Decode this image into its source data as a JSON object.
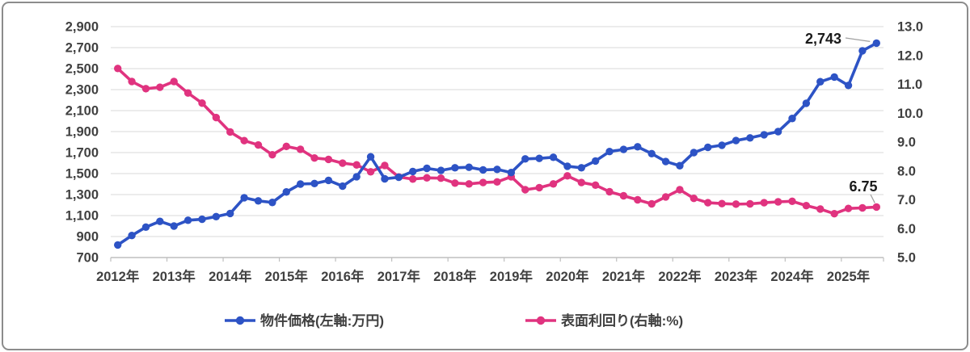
{
  "chart_data": {
    "type": "line",
    "title": "",
    "x_tick_labels": [
      "2012年",
      "2013年",
      "2014年",
      "2015年",
      "2016年",
      "2017年",
      "2018年",
      "2019年",
      "2020年",
      "2021年",
      "2022年",
      "2023年",
      "2024年",
      "2025年"
    ],
    "points_per_year": 4,
    "left_axis": {
      "min": 700,
      "max": 2900,
      "step": 200,
      "tick_labels": [
        "2,900",
        "2,700",
        "2,500",
        "2,300",
        "2,100",
        "1,900",
        "1,700",
        "1,500",
        "1,300",
        "1,100",
        "900",
        "700"
      ]
    },
    "right_axis": {
      "min": 5.0,
      "max": 13.0,
      "step": 1.0,
      "tick_labels": [
        "13.0",
        "12.0",
        "11.0",
        "10.0",
        "9.0",
        "8.0",
        "7.0",
        "6.0",
        "5.0"
      ]
    },
    "grid": true,
    "legend_position": "bottom",
    "series": [
      {
        "name": "表面利回り(右軸:%)",
        "axis": "right",
        "color": "#e0337f",
        "values": [
          11.55,
          11.1,
          10.85,
          10.9,
          11.1,
          10.7,
          10.35,
          9.85,
          9.35,
          9.05,
          8.9,
          8.56,
          8.85,
          8.75,
          8.45,
          8.4,
          8.27,
          8.21,
          7.97,
          8.19,
          7.79,
          7.72,
          7.76,
          7.75,
          7.58,
          7.55,
          7.6,
          7.62,
          7.8,
          7.35,
          7.42,
          7.55,
          7.83,
          7.6,
          7.51,
          7.28,
          7.14,
          7.0,
          6.86,
          7.1,
          7.35,
          7.05,
          6.9,
          6.87,
          6.85,
          6.86,
          6.9,
          6.93,
          6.95,
          6.8,
          6.68,
          6.52,
          6.7,
          6.72,
          6.75
        ]
      },
      {
        "name": "物件価格(左軸:万円)",
        "axis": "left",
        "color": "#2d53c5",
        "values": [
          820,
          910,
          990,
          1045,
          1000,
          1055,
          1065,
          1090,
          1120,
          1270,
          1240,
          1225,
          1325,
          1400,
          1405,
          1435,
          1380,
          1470,
          1660,
          1450,
          1465,
          1520,
          1550,
          1530,
          1555,
          1560,
          1535,
          1540,
          1510,
          1640,
          1645,
          1655,
          1570,
          1555,
          1620,
          1710,
          1730,
          1755,
          1690,
          1615,
          1575,
          1700,
          1750,
          1770,
          1815,
          1840,
          1870,
          1900,
          2025,
          2170,
          2375,
          2420,
          2340,
          2670,
          2743
        ]
      }
    ],
    "legend_order": [
      "物件価格(左軸:万円)",
      "表面利回り(右軸:%)"
    ],
    "annotations": [
      {
        "text": "2,743",
        "series": "物件価格(左軸:万円)",
        "point_index": 54
      },
      {
        "text": "6.75",
        "series": "表面利回り(右軸:%)",
        "point_index": 54
      }
    ]
  },
  "colors": {
    "grid": "#d9d9d9",
    "axis": "#bfbfbf",
    "tick_text": "#404040",
    "annotation_text": "#1a1a1a",
    "leader_line": "#a0a0a0",
    "frame": "#8c8c8c",
    "background": "#ffffff"
  }
}
